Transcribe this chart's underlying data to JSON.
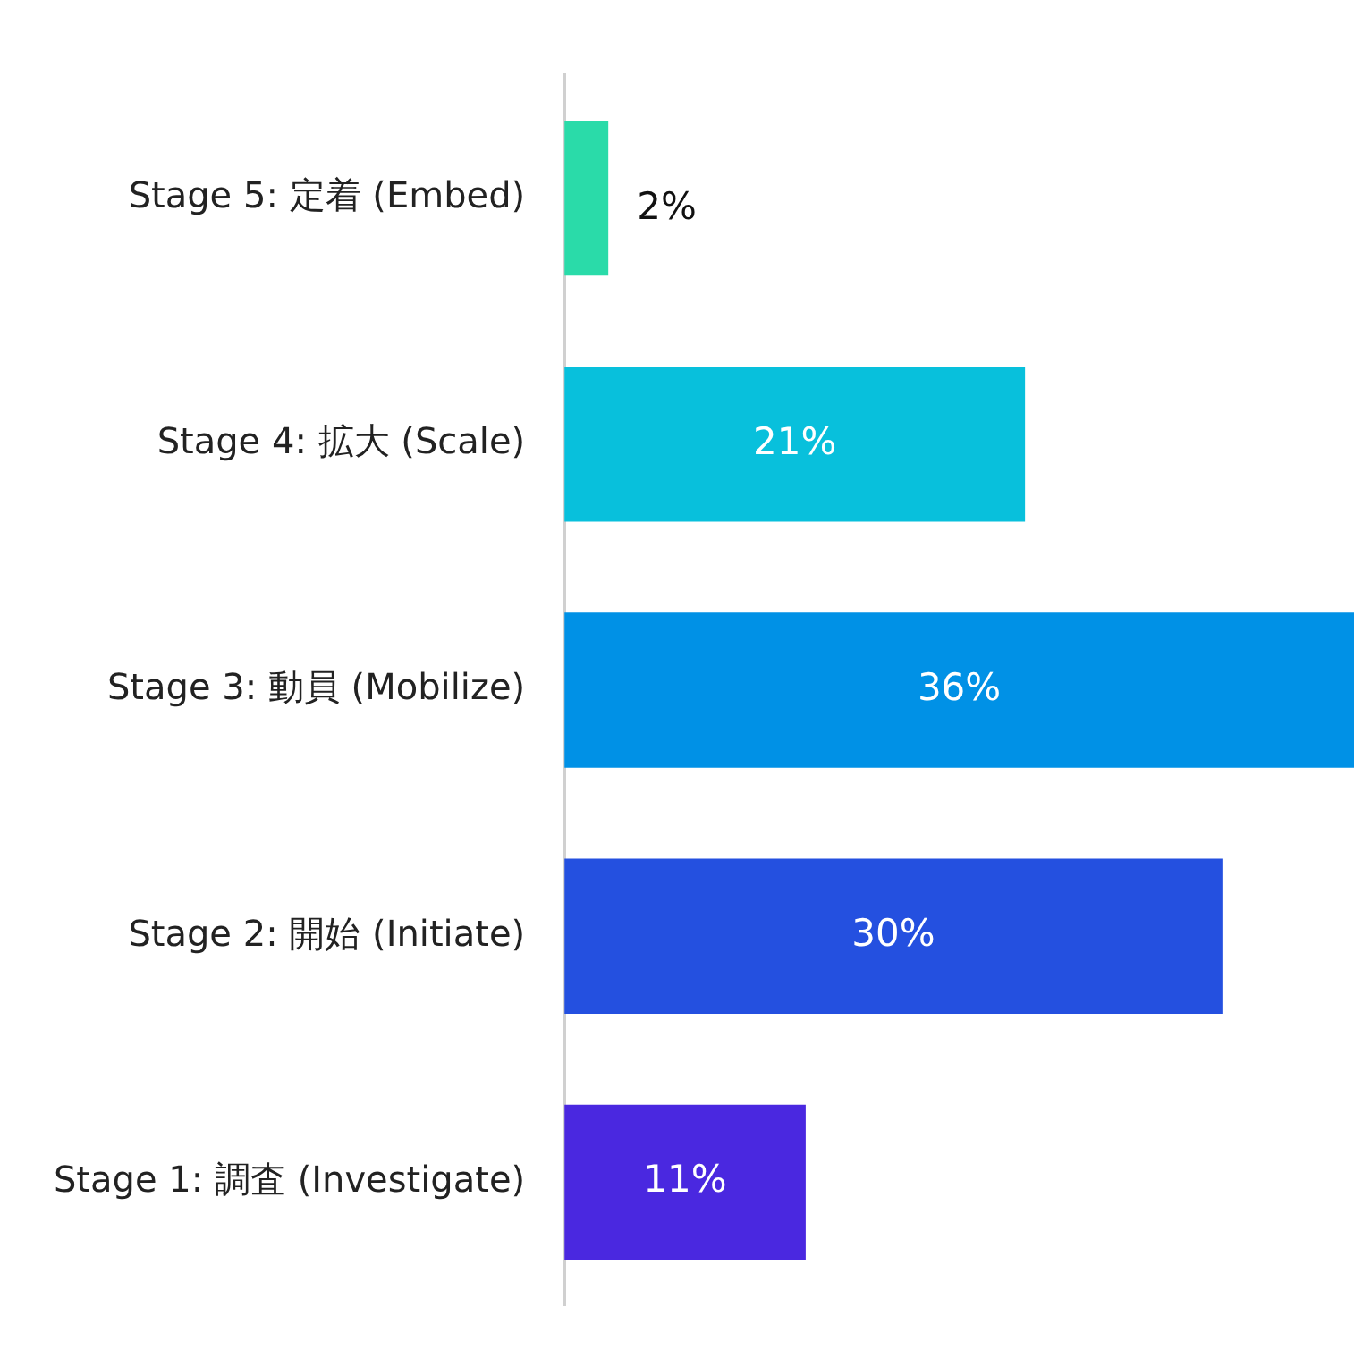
{
  "chart_data": {
    "type": "bar",
    "orientation": "horizontal",
    "categories": [
      "Stage 5: 定着 (Embed)",
      "Stage 4: 拡大 (Scale)",
      "Stage 3: 動員 (Mobilize)",
      "Stage 2: 開始 (Initiate)",
      "Stage 1: 調査 (Investigate)"
    ],
    "values": [
      2,
      21,
      36,
      30,
      11
    ],
    "value_labels": [
      "2%",
      "21%",
      "36%",
      "30%",
      "11%"
    ],
    "colors": [
      "#2adba9",
      "#08c0dc",
      "#0091e6",
      "#2450e0",
      "#4a28e0"
    ],
    "grid": false,
    "legend": false
  }
}
